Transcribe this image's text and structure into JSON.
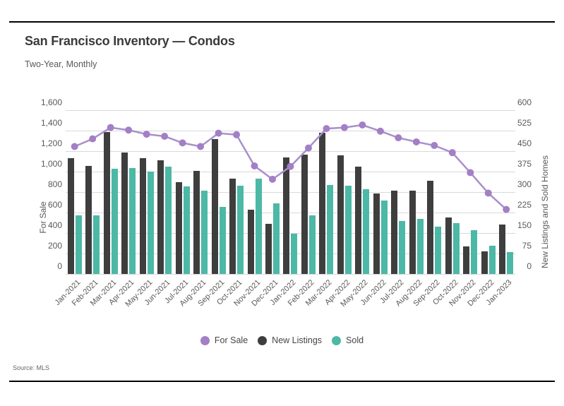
{
  "header": {
    "title": "San Francisco Inventory — Condos",
    "subtitle": "Two-Year, Monthly"
  },
  "footer": {
    "source": "Source: MLS"
  },
  "colors": {
    "for_sale_line": "#a88fcb",
    "for_sale_dot": "#a37fc6",
    "new_listings_bar": "#3e3e3e",
    "sold_bar": "#4cb8a6",
    "gridline": "#d9d9d9",
    "rule": "#000000",
    "axis_text": "#595959"
  },
  "chart_data": {
    "type": "combo-bar-line",
    "categories": [
      "Jan-2021",
      "Feb-2021",
      "Mar-2021",
      "Apr-2021",
      "May-2021",
      "Jun-2021",
      "Jul-2021",
      "Aug-2021",
      "Sep-2021",
      "Oct-2021",
      "Nov-2021",
      "Dec-2021",
      "Jan-2022",
      "Feb-2022",
      "Mar-2022",
      "Apr-2022",
      "May-2022",
      "Jun-2022",
      "Jul-2022",
      "Aug-2022",
      "Sep-2022",
      "Oct-2022",
      "Nov-2022",
      "Dec-2022",
      "Jan-2023"
    ],
    "series": [
      {
        "name": "For Sale",
        "type": "line",
        "axis": "left",
        "color": "#a37fc6",
        "values": [
          1245,
          1320,
          1430,
          1405,
          1365,
          1345,
          1280,
          1245,
          1375,
          1360,
          1055,
          925,
          1050,
          1230,
          1420,
          1430,
          1455,
          1395,
          1330,
          1290,
          1255,
          1185,
          990,
          790,
          630
        ]
      },
      {
        "name": "New Listings",
        "type": "bar",
        "axis": "right",
        "color": "#3e3e3e",
        "values": [
          425,
          395,
          520,
          445,
          425,
          416,
          335,
          378,
          494,
          348,
          236,
          184,
          427,
          436,
          516,
          435,
          393,
          294,
          305,
          304,
          341,
          206,
          102,
          83,
          182
        ]
      },
      {
        "name": "Sold",
        "type": "bar",
        "axis": "right",
        "color": "#4cb8a6",
        "values": [
          215,
          215,
          385,
          388,
          375,
          393,
          320,
          305,
          245,
          322,
          349,
          259,
          148,
          214,
          326,
          324,
          311,
          268,
          194,
          202,
          173,
          185,
          160,
          103,
          80
        ]
      }
    ],
    "left_axis": {
      "label": "For Sale",
      "min": 0,
      "max": 1600,
      "step": 200,
      "tick_labels": [
        "0",
        "200",
        "400",
        "600",
        "800",
        "1,000",
        "1,200",
        "1,400",
        "1,600"
      ]
    },
    "right_axis": {
      "label": "New Listings and Sold Homes",
      "min": 0,
      "max": 600,
      "step": 75,
      "tick_labels": [
        "0",
        "75",
        "150",
        "225",
        "300",
        "375",
        "450",
        "525",
        "600"
      ]
    },
    "grid": true,
    "legend_position": "bottom"
  }
}
